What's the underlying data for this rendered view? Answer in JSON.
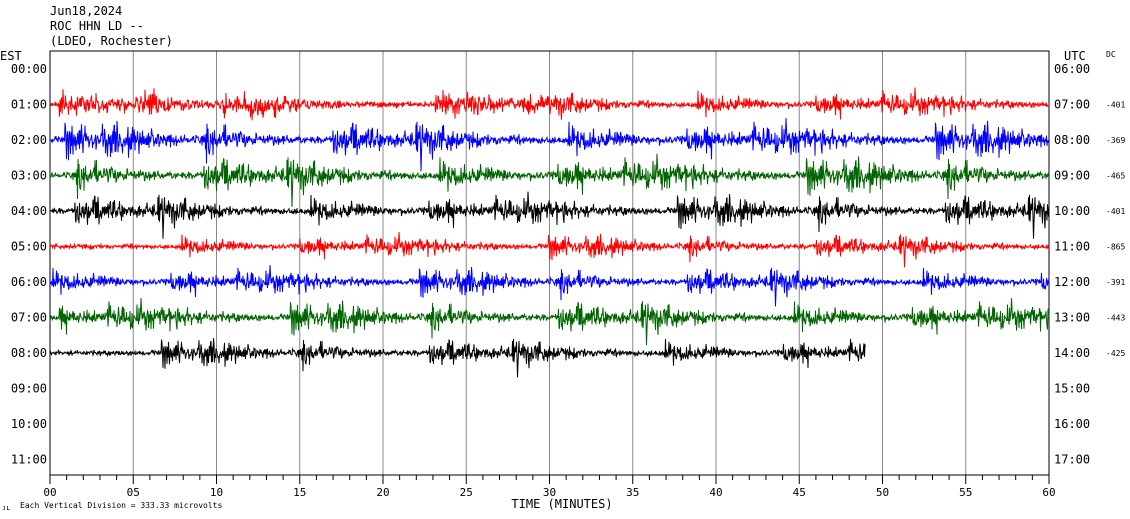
{
  "header": {
    "date": "Jun18,2024",
    "station": "ROC HHN LD --",
    "network": "(LDEO, Rochester)"
  },
  "left_axis_title": "EST",
  "right_axis_title": "UTC",
  "dc_title": "DC",
  "footer": {
    "mark": "ᴊʟ",
    "scale_note": "Each Vertical Division =  333.33 microvolts"
  },
  "chart_data": {
    "type": "line",
    "xlabel": "TIME (MINUTES)",
    "x_ticks": [
      "00",
      "05",
      "10",
      "15",
      "20",
      "25",
      "30",
      "35",
      "40",
      "45",
      "50",
      "55",
      "60"
    ],
    "xlim": [
      0,
      60
    ],
    "est_labels": [
      "00:00",
      "01:00",
      "02:00",
      "03:00",
      "04:00",
      "05:00",
      "06:00",
      "07:00",
      "08:00",
      "09:00",
      "10:00",
      "11:00"
    ],
    "utc_labels": [
      "06:00",
      "07:00",
      "08:00",
      "09:00",
      "10:00",
      "11:00",
      "12:00",
      "13:00",
      "14:00",
      "15:00",
      "16:00",
      "17:00"
    ],
    "dc_offsets": [
      "-401",
      "-369",
      "-465",
      "-401",
      "-865",
      "-391",
      "-443",
      "-425"
    ],
    "series": [
      {
        "row": 1,
        "color": "#ff0000",
        "end_minute": 60,
        "amplitude": 0.35
      },
      {
        "row": 2,
        "color": "#0000ff",
        "end_minute": 60,
        "amplitude": 0.45
      },
      {
        "row": 3,
        "color": "#006400",
        "end_minute": 60,
        "amplitude": 0.45
      },
      {
        "row": 4,
        "color": "#000000",
        "end_minute": 60,
        "amplitude": 0.4
      },
      {
        "row": 5,
        "color": "#ff0000",
        "end_minute": 60,
        "amplitude": 0.3
      },
      {
        "row": 6,
        "color": "#0000ff",
        "end_minute": 60,
        "amplitude": 0.35
      },
      {
        "row": 7,
        "color": "#006400",
        "end_minute": 60,
        "amplitude": 0.4
      },
      {
        "row": 8,
        "color": "#000000",
        "end_minute": 49,
        "amplitude": 0.35
      }
    ]
  }
}
